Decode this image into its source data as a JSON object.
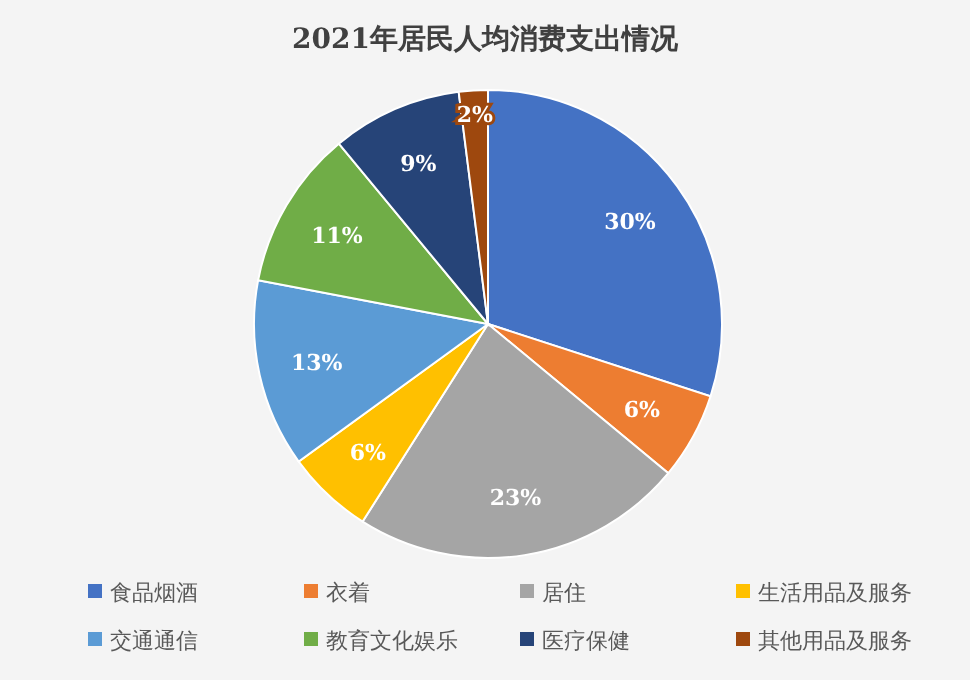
{
  "chart_data": {
    "type": "pie",
    "title": "2021年居民人均消费支出情况",
    "categories": [
      "食品烟酒",
      "衣着",
      "居住",
      "生活用品及服务",
      "交通通信",
      "教育文化娱乐",
      "医疗保健",
      "其他用品及服务"
    ],
    "values": [
      30,
      6,
      23,
      6,
      13,
      11,
      9,
      2
    ],
    "value_labels": [
      "30%",
      "6%",
      "23%",
      "6%",
      "13%",
      "11%",
      "9%",
      "2%"
    ],
    "colors": [
      "#4472c4",
      "#ed7d31",
      "#a5a5a5",
      "#ffc000",
      "#5b9bd5",
      "#70ad47",
      "#264478",
      "#9e480e"
    ],
    "legend": "bottom"
  }
}
